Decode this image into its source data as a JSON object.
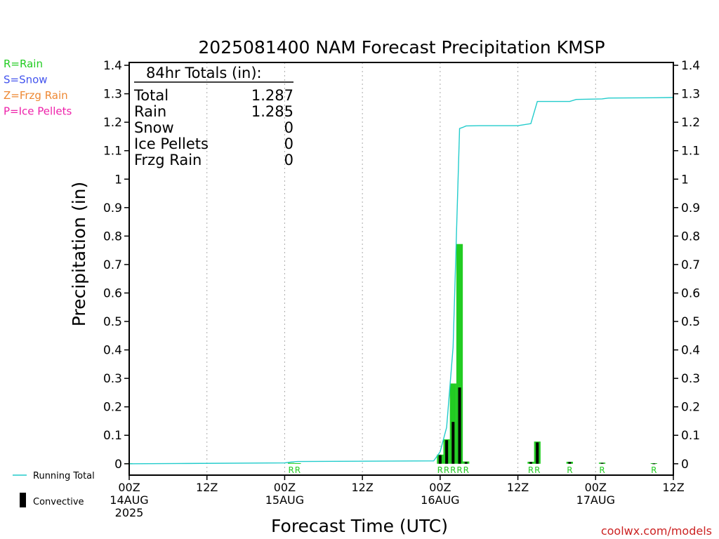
{
  "chart_data": {
    "type": "bar",
    "title": "2025081400 NAM Forecast Precipitation KMSP",
    "ylabel": "Precipitation (in)",
    "xlabel": "Forecast Time (UTC)",
    "ylim": [
      -0.04,
      1.41
    ],
    "xlim_hours": [
      0,
      84
    ],
    "grid_vertical": "dotted",
    "yticks": [
      0,
      0.1,
      0.2,
      0.3,
      0.4,
      0.5,
      0.6,
      0.7,
      0.8,
      0.9,
      1,
      1.1,
      1.2,
      1.3,
      1.4
    ],
    "ytick_labels": [
      "0",
      "0.1",
      "0.2",
      "0.3",
      "0.4",
      "0.5",
      "0.6",
      "0.7",
      "0.8",
      "0.9",
      "1",
      "1.1",
      "1.2",
      "1.3",
      "1.4"
    ],
    "xticks": [
      {
        "hour": 0,
        "lines": [
          "00Z",
          "14AUG",
          "2025"
        ]
      },
      {
        "hour": 12,
        "lines": [
          "12Z"
        ]
      },
      {
        "hour": 24,
        "lines": [
          "00Z",
          "15AUG"
        ]
      },
      {
        "hour": 36,
        "lines": [
          "12Z"
        ]
      },
      {
        "hour": 48,
        "lines": [
          "00Z",
          "16AUG"
        ]
      },
      {
        "hour": 60,
        "lines": [
          "12Z"
        ]
      },
      {
        "hour": 72,
        "lines": [
          "00Z",
          "17AUG"
        ]
      },
      {
        "hour": 84,
        "lines": [
          "12Z"
        ]
      }
    ],
    "totals": {
      "heading": "84hr Totals (in):",
      "rows": [
        {
          "label": "Total",
          "value": "1.287"
        },
        {
          "label": "Rain",
          "value": "1.285"
        },
        {
          "label": "Snow",
          "value": "0"
        },
        {
          "label": "Ice Pellets",
          "value": "0"
        },
        {
          "label": "Frzg Rain",
          "value": "0"
        }
      ]
    },
    "legend_precip_types": [
      {
        "text": "R=Rain",
        "color": "#22cc22"
      },
      {
        "text": "S=Snow",
        "color": "#4455ee"
      },
      {
        "text": "Z=Frzg Rain",
        "color": "#ee8833"
      },
      {
        "text": "P=Ice Pellets",
        "color": "#ee22aa"
      }
    ],
    "legend_series": [
      {
        "text": "Running Total",
        "color": "#22cccc"
      },
      {
        "text": "Convective",
        "color": "#000000"
      }
    ],
    "precip_bars": [
      {
        "hour": 0,
        "value": 0.002,
        "convective": 0
      },
      {
        "hour": 25,
        "value": 0.003,
        "convective": 0
      },
      {
        "hour": 26,
        "value": 0.002,
        "convective": 0
      },
      {
        "hour": 48,
        "value": 0.032,
        "convective": 0.03
      },
      {
        "hour": 49,
        "value": 0.086,
        "convective": 0.083
      },
      {
        "hour": 50,
        "value": 0.282,
        "convective": 0.147
      },
      {
        "hour": 51,
        "value": 0.772,
        "convective": 0.268
      },
      {
        "hour": 52,
        "value": 0.008,
        "convective": 0.006
      },
      {
        "hour": 62,
        "value": 0.007,
        "convective": 0.006
      },
      {
        "hour": 63,
        "value": 0.078,
        "convective": 0.075
      },
      {
        "hour": 68,
        "value": 0.007,
        "convective": 0.006
      },
      {
        "hour": 73,
        "value": 0.004,
        "convective": 0.003
      },
      {
        "hour": 81,
        "value": 0.002,
        "convective": 0.001
      }
    ],
    "running_total": {
      "name": "Running Total",
      "x": [
        0,
        9,
        24,
        25,
        26,
        47,
        48,
        49,
        50,
        51,
        51.5,
        52,
        54,
        60,
        62,
        63,
        68,
        69,
        73,
        74,
        81,
        84
      ],
      "y": [
        0,
        0.001,
        0.003,
        0.006,
        0.008,
        0.01,
        0.042,
        0.128,
        0.41,
        1.178,
        1.182,
        1.187,
        1.188,
        1.188,
        1.195,
        1.273,
        1.273,
        1.28,
        1.282,
        1.285,
        1.286,
        1.287
      ]
    },
    "type_markers": [
      {
        "hour": 25,
        "text": "R"
      },
      {
        "hour": 26,
        "text": "R"
      },
      {
        "hour": 48,
        "text": "R"
      },
      {
        "hour": 49,
        "text": "R"
      },
      {
        "hour": 50,
        "text": "R"
      },
      {
        "hour": 51,
        "text": "R"
      },
      {
        "hour": 52,
        "text": "R"
      },
      {
        "hour": 62,
        "text": "R"
      },
      {
        "hour": 63,
        "text": "R"
      },
      {
        "hour": 68,
        "text": "R"
      },
      {
        "hour": 73,
        "text": "R"
      },
      {
        "hour": 81,
        "text": "R"
      }
    ],
    "colors": {
      "rain": "#22cc22",
      "convective": "#000000",
      "running_total": "#22cccc",
      "grid": "#aaaaaa",
      "watermark": "#cc2222"
    },
    "watermark": "coolwx.com/models"
  }
}
